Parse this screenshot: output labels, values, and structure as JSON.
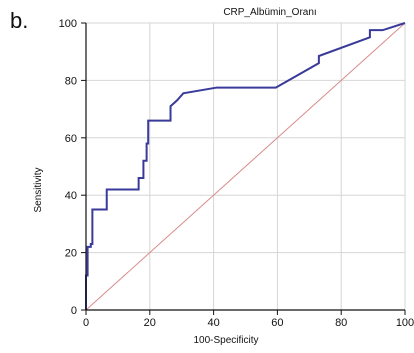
{
  "panel_label": "b.",
  "colors": {
    "roc_curve": "#3a3a9a",
    "diagonal": "#d98c8c",
    "grid": "#d6d6d6",
    "axis": "#111111"
  },
  "chart_data": {
    "type": "line",
    "title": "CRP_Albümin_Oranı",
    "xlabel": "100-Specificity",
    "ylabel": "Sensitivity",
    "xlim": [
      0,
      100
    ],
    "ylim": [
      0,
      100
    ],
    "xticks": [
      "0",
      "20",
      "40",
      "60",
      "80",
      "100"
    ],
    "yticks": [
      "0",
      "20",
      "40",
      "60",
      "80",
      "100"
    ],
    "grid": true,
    "series": [
      {
        "x": [
          0,
          0,
          0.5,
          0.5,
          1.5,
          1.5,
          2,
          2,
          6.5,
          6.5,
          16.5,
          16.5,
          18,
          18,
          19,
          19,
          19.5,
          19.5,
          26.5,
          26.5,
          28.5,
          30.5,
          41,
          59.5,
          73,
          73,
          89,
          89,
          93,
          100
        ],
        "y": [
          0,
          12,
          12,
          22,
          22,
          23,
          23,
          35,
          35,
          42,
          42,
          46,
          46,
          52,
          52,
          58,
          58,
          66,
          66,
          71,
          73,
          75.5,
          77.5,
          77.5,
          86,
          88.5,
          95,
          97.5,
          97.5,
          100
        ]
      },
      {
        "x": [
          0,
          100
        ],
        "y": [
          0,
          100
        ]
      }
    ]
  }
}
